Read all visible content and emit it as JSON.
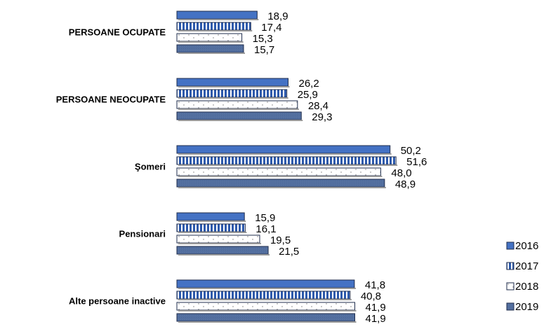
{
  "chart_data": {
    "type": "bar",
    "orientation": "horizontal",
    "categories": [
      "PERSOANE OCUPATE",
      "PERSOANE NEOCUPATE",
      "Şomeri",
      "Pensionari",
      "Alte persoane inactive"
    ],
    "series": [
      {
        "name": "2016",
        "values": [
          18.9,
          26.2,
          50.2,
          15.9,
          41.8
        ],
        "labels": [
          "18,9",
          "26,2",
          "50,2",
          "15,9",
          "41,8"
        ],
        "color": "#4472C4",
        "pattern": "solid"
      },
      {
        "name": "2017",
        "values": [
          17.4,
          25.9,
          51.6,
          16.1,
          40.8
        ],
        "labels": [
          "17,4",
          "25,9",
          "51,6",
          "16,1",
          "40,8"
        ],
        "color": "#2E5AAC",
        "pattern": "vertical-stripes"
      },
      {
        "name": "2018",
        "values": [
          15.3,
          28.4,
          48.0,
          19.5,
          41.9
        ],
        "labels": [
          "15,3",
          "28,4",
          "48,0",
          "19,5",
          "41,9"
        ],
        "color": "#FFFFFF",
        "pattern": "dots"
      },
      {
        "name": "2019",
        "values": [
          15.7,
          29.3,
          48.9,
          21.5,
          41.9
        ],
        "labels": [
          "15,7",
          "29,3",
          "48,9",
          "21,5",
          "41,9"
        ],
        "color": "#5470A0",
        "pattern": "solid-dark"
      }
    ],
    "xlim": [
      0,
      60
    ],
    "title": "",
    "xlabel": "",
    "ylabel": "",
    "grid": false,
    "legend_position": "bottom-right"
  }
}
